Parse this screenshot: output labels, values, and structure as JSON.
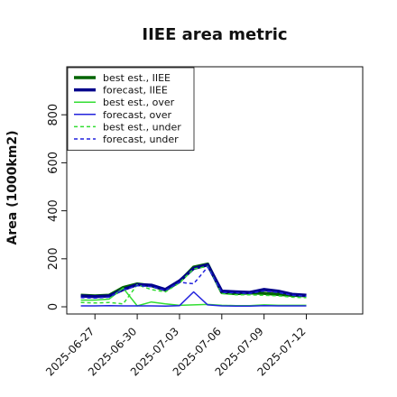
{
  "chart_data": {
    "type": "line",
    "title": "IIEE area metric",
    "xlabel": "",
    "ylabel": "Area (1000km2)",
    "ylim": [
      -30,
      1000
    ],
    "yticks": [
      0,
      200,
      400,
      600,
      800
    ],
    "xlim": [
      -1,
      20
    ],
    "x": [
      "2025-06-26",
      "2025-06-27",
      "2025-06-28",
      "2025-06-29",
      "2025-06-30",
      "2025-07-01",
      "2025-07-02",
      "2025-07-03",
      "2025-07-04",
      "2025-07-05",
      "2025-07-06",
      "2025-07-07",
      "2025-07-08",
      "2025-07-09",
      "2025-07-10",
      "2025-07-11",
      "2025-07-12"
    ],
    "x_tick_labels": [
      "2025-06-27",
      "2025-06-30",
      "2025-07-03",
      "2025-07-06",
      "2025-07-09",
      "2025-07-12"
    ],
    "highlight_tick": "2025-07-03",
    "highlight_color": "#2e8b2e",
    "legend_position": "top-left",
    "grid": false,
    "series": [
      {
        "name": "best est., IIEE",
        "color": "#006400",
        "style": "solid",
        "width": 3.5,
        "values": [
          48,
          45,
          48,
          80,
          95,
          88,
          70,
          105,
          165,
          178,
          60,
          55,
          58,
          56,
          52,
          48,
          46
        ]
      },
      {
        "name": "forecast, IIEE",
        "color": "#00008b",
        "style": "solid",
        "width": 3.5,
        "values": [
          45,
          42,
          45,
          72,
          92,
          90,
          72,
          108,
          160,
          175,
          65,
          62,
          60,
          72,
          65,
          52,
          48
        ]
      },
      {
        "name": "best est., over",
        "color": "#33dd33",
        "style": "solid",
        "width": 1.5,
        "values": [
          28,
          28,
          32,
          78,
          4,
          20,
          12,
          6,
          8,
          10,
          6,
          5,
          5,
          8,
          6,
          6,
          6
        ]
      },
      {
        "name": "forecast, over",
        "color": "#2222dd",
        "style": "solid",
        "width": 1.5,
        "values": [
          4,
          4,
          5,
          4,
          4,
          4,
          3,
          5,
          62,
          8,
          4,
          3,
          3,
          5,
          4,
          4,
          4
        ]
      },
      {
        "name": "best est., under",
        "color": "#33dd33",
        "style": "dashed",
        "width": 1.5,
        "values": [
          18,
          16,
          18,
          12,
          92,
          72,
          62,
          100,
          158,
          168,
          55,
          50,
          50,
          48,
          46,
          40,
          38
        ]
      },
      {
        "name": "forecast, under",
        "color": "#2222dd",
        "style": "dashed",
        "width": 1.5,
        "values": [
          38,
          36,
          40,
          70,
          88,
          84,
          68,
          102,
          96,
          166,
          60,
          58,
          56,
          66,
          60,
          48,
          44
        ]
      }
    ]
  }
}
